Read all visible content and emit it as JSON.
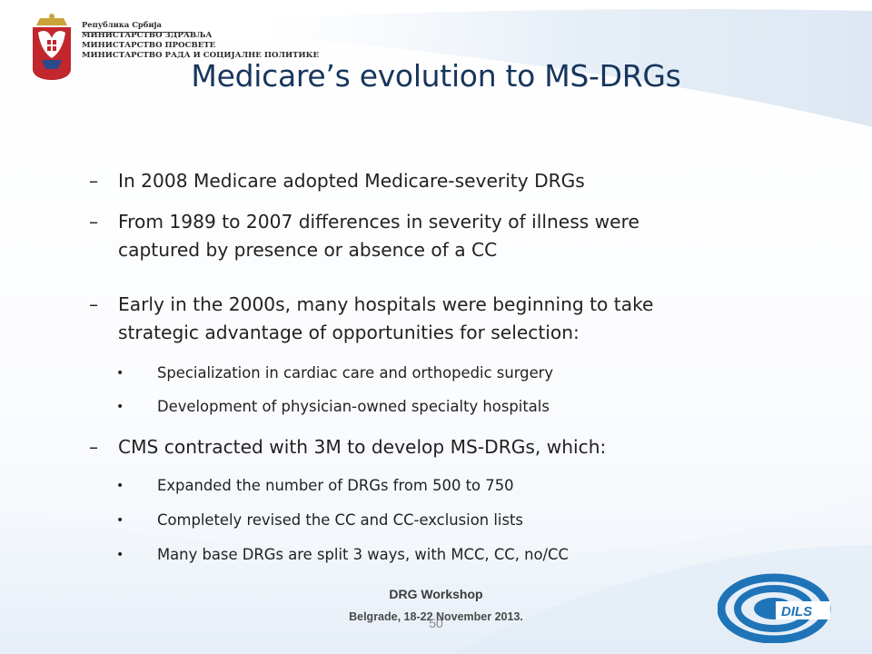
{
  "header": {
    "republic": "Република Србија",
    "ministries": [
      "МИНИСТАРСТВО ЗДРАВЉА",
      "МИНИСТАРСТВО ПРОСВЕТЕ",
      "МИНИСТАРСТВО РАДА И СОЦИЈАЛНЕ ПОЛИТИКЕ"
    ]
  },
  "title": "Medicare’s evolution to MS-DRGs",
  "dash_symbol": "–",
  "bullet_symbol": "•",
  "items": [
    {
      "lines": [
        "In 2008 Medicare adopted Medicare-severity DRGs"
      ]
    },
    {
      "lines": [
        "From 1989 to 2007 differences in severity of illness were",
        "captured by presence or absence of a CC"
      ]
    },
    {
      "lines": [
        "Early in the 2000s, many hospitals were beginning to take",
        "strategic advantage of opportunities for selection:"
      ]
    },
    {
      "lines": [
        "CMS contracted with 3M to develop MS-DRGs, which:"
      ]
    }
  ],
  "subitems_selection": [
    "Specialization in cardiac care and orthopedic surgery",
    "Development of physician-owned specialty hospitals"
  ],
  "subitems_msdrg": [
    "Expanded the number of DRGs from 500 to 750",
    "Completely revised the CC and CC-exclusion lists",
    "Many base DRGs are split 3 ways, with  MCC, CC, no/CC"
  ],
  "footer": {
    "title": "DRG Workshop",
    "subtitle": "Belgrade, 18-22 November 2013.",
    "page_number": "50"
  },
  "logo": {
    "text": "DILS"
  },
  "colors": {
    "title": "#17365d",
    "logo_blue": "#1f74b8",
    "crest_red": "#c1272d"
  }
}
